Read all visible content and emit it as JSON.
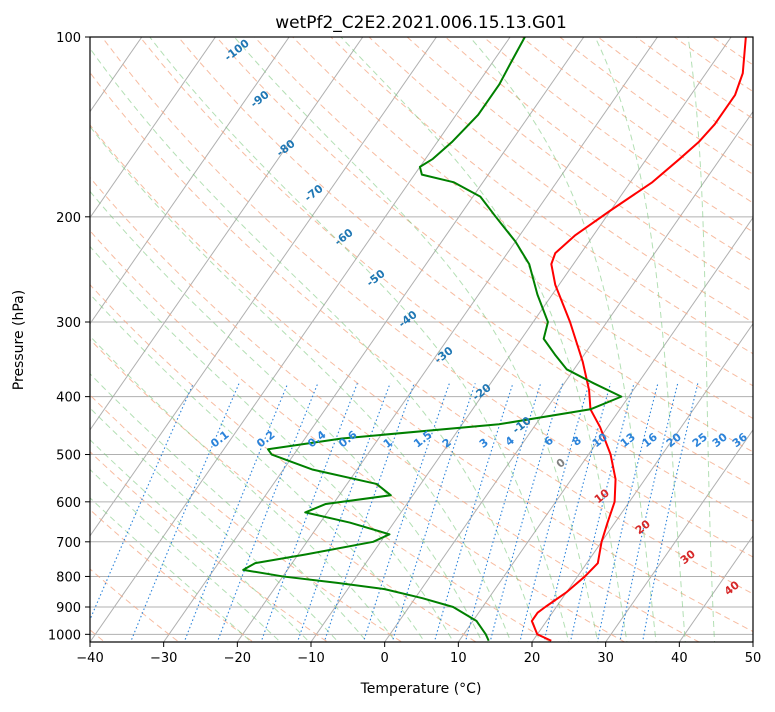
{
  "chart_data": {
    "type": "line",
    "subtype": "skew-t log-p",
    "title": "wetPf2_C2E2.2021.006.15.13.G01",
    "xlabel": "Temperature (°C)",
    "ylabel": "Pressure (hPa)",
    "xlim": [
      -40,
      50
    ],
    "ylim": [
      1030,
      100
    ],
    "y_scale": "log",
    "grid": true,
    "x_ticks": [
      -40,
      -30,
      -20,
      -10,
      0,
      10,
      20,
      30,
      40,
      50
    ],
    "x_tick_labels": [
      "−40",
      "−30",
      "−20",
      "−10",
      "0",
      "10",
      "20",
      "30",
      "40",
      "50"
    ],
    "y_ticks": [
      100,
      200,
      300,
      400,
      500,
      600,
      700,
      800,
      900,
      1000
    ],
    "y_tick_labels": [
      "100",
      "200",
      "300",
      "400",
      "500",
      "600",
      "700",
      "800",
      "900",
      "1000"
    ],
    "series": [
      {
        "role": "temperature",
        "color": "#ff0000",
        "points": [
          [
            1025,
            22.5
          ],
          [
            1000,
            20.0
          ],
          [
            950,
            18.0
          ],
          [
            920,
            18.0
          ],
          [
            900,
            18.5
          ],
          [
            850,
            20.0
          ],
          [
            800,
            21.0
          ],
          [
            760,
            21.5
          ],
          [
            700,
            20.0
          ],
          [
            650,
            19.0
          ],
          [
            600,
            18.0
          ],
          [
            550,
            16.0
          ],
          [
            500,
            13.0
          ],
          [
            450,
            9.0
          ],
          [
            420,
            6.0
          ],
          [
            390,
            4.0
          ],
          [
            350,
            0.5
          ],
          [
            300,
            -5.0
          ],
          [
            260,
            -10.5
          ],
          [
            240,
            -13.0
          ],
          [
            230,
            -13.5
          ],
          [
            215,
            -12.5
          ],
          [
            195,
            -10.0
          ],
          [
            175,
            -7.0
          ],
          [
            160,
            -5.5
          ],
          [
            150,
            -4.5
          ],
          [
            140,
            -4.0
          ],
          [
            125,
            -4.0
          ],
          [
            115,
            -5.0
          ],
          [
            100,
            -8.0
          ]
        ]
      },
      {
        "role": "dewpoint",
        "color": "#008000",
        "points": [
          [
            1025,
            14.0
          ],
          [
            1000,
            13.0
          ],
          [
            950,
            10.5
          ],
          [
            900,
            6.0
          ],
          [
            870,
            1.0
          ],
          [
            840,
            -5.0
          ],
          [
            820,
            -12.0
          ],
          [
            800,
            -20.0
          ],
          [
            780,
            -26.0
          ],
          [
            760,
            -25.0
          ],
          [
            735,
            -19.0
          ],
          [
            700,
            -11.0
          ],
          [
            680,
            -9.5
          ],
          [
            650,
            -16.0
          ],
          [
            625,
            -23.0
          ],
          [
            605,
            -21.0
          ],
          [
            585,
            -13.0
          ],
          [
            560,
            -16.0
          ],
          [
            530,
            -26.0
          ],
          [
            500,
            -33.0
          ],
          [
            490,
            -34.0
          ],
          [
            470,
            -25.0
          ],
          [
            445,
            -5.0
          ],
          [
            420,
            6.0
          ],
          [
            400,
            9.0
          ],
          [
            380,
            4.0
          ],
          [
            360,
            -1.0
          ],
          [
            340,
            -4.0
          ],
          [
            320,
            -7.0
          ],
          [
            300,
            -8.0
          ],
          [
            270,
            -12.0
          ],
          [
            240,
            -16.0
          ],
          [
            220,
            -20.0
          ],
          [
            200,
            -25.0
          ],
          [
            185,
            -29.0
          ],
          [
            175,
            -34.0
          ],
          [
            170,
            -39.0
          ],
          [
            165,
            -40.0
          ],
          [
            160,
            -39.0
          ],
          [
            150,
            -38.0
          ],
          [
            135,
            -37.0
          ],
          [
            120,
            -37.0
          ],
          [
            110,
            -37.5
          ],
          [
            100,
            -38.0
          ]
        ]
      }
    ],
    "dry_adiabat_labels": [
      "-100",
      "-90",
      "-80",
      "-70",
      "-60",
      "-50",
      "-40",
      "-30",
      "-20",
      "-10"
    ],
    "mixing_ratio_labels": [
      "0.1",
      "0.2",
      "0.4",
      "0.6",
      "1",
      "1.5",
      "2",
      "3",
      "4",
      "6",
      "8",
      "10",
      "13",
      "16",
      "20",
      "25",
      "30",
      "36"
    ],
    "moist_adiabat_labels": [
      "0",
      "10",
      "20",
      "30",
      "40"
    ]
  }
}
